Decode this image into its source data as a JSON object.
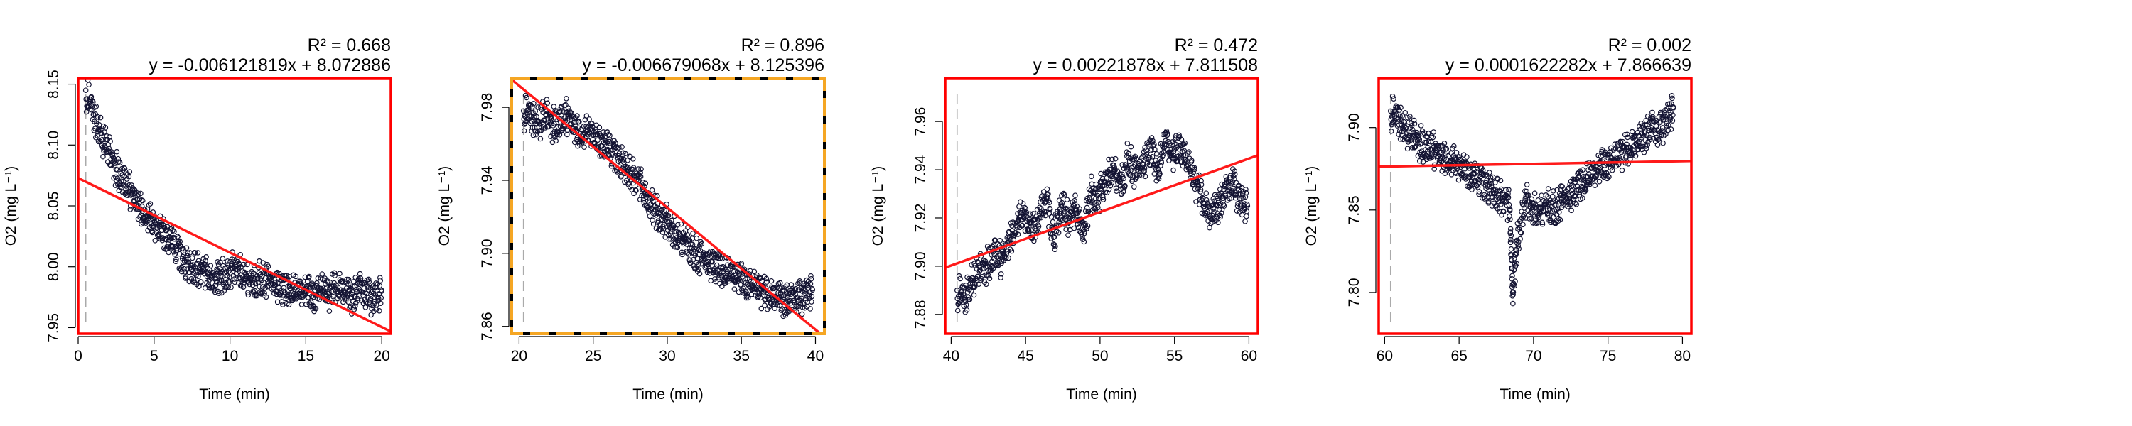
{
  "chart_data": [
    {
      "type": "scatter",
      "xlabel": "Time (min)",
      "ylabel": "O2 (mg L⁻¹)",
      "r2_label": "R² = 0.668",
      "equation_label": "y = -0.006121819x + 8.072886",
      "fit": {
        "slope": -0.006121819,
        "intercept": 8.072886
      },
      "border_color": "#ff0000",
      "border_style": "solid",
      "xlim": [
        0,
        20.6
      ],
      "ylim": [
        7.945,
        8.155
      ],
      "xticks": [
        "0",
        "5",
        "10",
        "15",
        "20"
      ],
      "yticks": [
        "7.95",
        "8.00",
        "8.05",
        "8.10",
        "8.15"
      ],
      "xtick_values": [
        0,
        5,
        10,
        15,
        20
      ],
      "ytick_values": [
        7.95,
        8.0,
        8.05,
        8.1,
        8.15
      ],
      "vline_x": 0.5,
      "points": {
        "x": [
          0.5,
          1.0,
          1.5,
          2.0,
          2.5,
          3.0,
          3.5,
          4.0,
          4.5,
          5.0,
          5.5,
          6.0,
          6.5,
          7.0,
          7.5,
          8.0,
          8.5,
          9.0,
          9.5,
          10.0,
          10.5,
          11.0,
          11.5,
          12.0,
          12.5,
          13.0,
          13.5,
          14.0,
          14.5,
          15.0,
          15.5,
          16.0,
          16.5,
          17.0,
          17.5,
          18.0,
          18.5,
          19.0,
          19.5,
          20.0
        ],
        "y": [
          8.145,
          8.125,
          8.11,
          8.095,
          8.08,
          8.07,
          8.06,
          8.05,
          8.042,
          8.035,
          8.03,
          8.022,
          8.015,
          8.005,
          7.998,
          7.995,
          7.992,
          7.99,
          7.992,
          7.995,
          7.998,
          7.99,
          7.985,
          7.99,
          7.988,
          7.985,
          7.98,
          7.982,
          7.978,
          7.98,
          7.975,
          7.982,
          7.978,
          7.985,
          7.98,
          7.975,
          7.982,
          7.978,
          7.975,
          7.98
        ]
      }
    },
    {
      "type": "scatter",
      "xlabel": "Time (min)",
      "ylabel": "O2 (mg L⁻¹)",
      "r2_label": "R² = 0.896",
      "equation_label": "y = -0.006679068x + 8.125396",
      "fit": {
        "slope": -0.006679068,
        "intercept": 8.125396
      },
      "border_color": "#f5a623",
      "border_style": "dashed",
      "xlim": [
        19.5,
        40.6
      ],
      "ylim": [
        7.856,
        7.996
      ],
      "xticks": [
        "20",
        "25",
        "30",
        "35",
        "40"
      ],
      "yticks": [
        "7.86",
        "7.90",
        "7.94",
        "7.98"
      ],
      "xtick_values": [
        20,
        25,
        30,
        35,
        40
      ],
      "ytick_values": [
        7.86,
        7.9,
        7.94,
        7.98
      ],
      "vline_x": 20.3,
      "points": {
        "x": [
          20.3,
          20.8,
          21.3,
          21.8,
          22.3,
          22.8,
          23.3,
          23.8,
          24.3,
          24.8,
          25.3,
          25.8,
          26.3,
          26.8,
          27.3,
          27.8,
          28.3,
          28.8,
          29.3,
          29.8,
          30.3,
          30.8,
          31.3,
          31.8,
          32.3,
          32.8,
          33.3,
          33.8,
          34.3,
          34.8,
          35.3,
          35.8,
          36.3,
          36.8,
          37.3,
          37.8,
          38.3,
          38.8,
          39.3,
          39.8
        ],
        "y": [
          7.978,
          7.975,
          7.972,
          7.976,
          7.97,
          7.972,
          7.975,
          7.968,
          7.965,
          7.968,
          7.962,
          7.96,
          7.955,
          7.952,
          7.945,
          7.94,
          7.935,
          7.928,
          7.922,
          7.918,
          7.912,
          7.908,
          7.905,
          7.9,
          7.897,
          7.894,
          7.892,
          7.89,
          7.888,
          7.886,
          7.884,
          7.882,
          7.88,
          7.878,
          7.876,
          7.875,
          7.874,
          7.876,
          7.878,
          7.88
        ]
      }
    },
    {
      "type": "scatter",
      "xlabel": "Time (min)",
      "ylabel": "O2 (mg L⁻¹)",
      "r2_label": "R² = 0.472",
      "equation_label": "y = 0.00221878x + 7.811508",
      "fit": {
        "slope": 0.00221878,
        "intercept": 7.811508
      },
      "border_color": "#ff0000",
      "border_style": "solid",
      "xlim": [
        39.6,
        60.6
      ],
      "ylim": [
        7.872,
        7.978
      ],
      "xticks": [
        "40",
        "45",
        "50",
        "55",
        "60"
      ],
      "yticks": [
        "7.88",
        "7.90",
        "7.92",
        "7.94",
        "7.96"
      ],
      "xtick_values": [
        40,
        45,
        50,
        55,
        60
      ],
      "ytick_values": [
        7.88,
        7.9,
        7.92,
        7.94,
        7.96
      ],
      "vline_x": 40.4,
      "points": {
        "x": [
          40.4,
          40.9,
          41.4,
          41.9,
          42.4,
          42.9,
          43.4,
          43.9,
          44.4,
          44.9,
          45.4,
          45.9,
          46.4,
          46.9,
          47.4,
          47.9,
          48.4,
          48.9,
          49.4,
          49.9,
          50.4,
          50.9,
          51.4,
          51.9,
          52.4,
          52.9,
          53.4,
          53.9,
          54.4,
          54.9,
          55.4,
          55.9,
          56.4,
          56.9,
          57.4,
          57.9,
          58.4,
          58.9,
          59.4,
          59.9
        ],
        "y": [
          7.89,
          7.886,
          7.895,
          7.898,
          7.9,
          7.905,
          7.902,
          7.91,
          7.918,
          7.922,
          7.915,
          7.92,
          7.928,
          7.912,
          7.925,
          7.918,
          7.922,
          7.915,
          7.93,
          7.928,
          7.935,
          7.94,
          7.932,
          7.945,
          7.938,
          7.942,
          7.948,
          7.94,
          7.952,
          7.945,
          7.95,
          7.942,
          7.935,
          7.928,
          7.92,
          7.925,
          7.93,
          7.935,
          7.928,
          7.925
        ]
      }
    },
    {
      "type": "scatter",
      "xlabel": "Time (min)",
      "ylabel": "O2 (mg L⁻¹)",
      "r2_label": "R² = 0.002",
      "equation_label": "y = 0.0001622282x + 7.866639",
      "fit": {
        "slope": 0.0001622282,
        "intercept": 7.866639
      },
      "border_color": "#ff0000",
      "border_style": "solid",
      "xlim": [
        59.6,
        80.6
      ],
      "ylim": [
        7.775,
        7.93
      ],
      "xticks": [
        "60",
        "65",
        "70",
        "75",
        "80"
      ],
      "yticks": [
        "7.80",
        "7.85",
        "7.90"
      ],
      "xtick_values": [
        60,
        65,
        70,
        75,
        80
      ],
      "ytick_values": [
        7.8,
        7.85,
        7.9
      ],
      "vline_x": 60.4,
      "points": {
        "x": [
          60.4,
          60.9,
          61.4,
          61.9,
          62.4,
          62.9,
          63.4,
          63.9,
          64.4,
          64.9,
          65.4,
          65.9,
          66.4,
          66.9,
          67.4,
          67.9,
          68.4,
          68.6,
          68.9,
          69.4,
          69.9,
          70.4,
          70.9,
          71.4,
          71.9,
          72.4,
          72.9,
          73.4,
          73.9,
          74.4,
          74.9,
          75.4,
          75.9,
          76.4,
          76.9,
          77.4,
          77.9,
          78.4,
          78.9,
          79.4
        ],
        "y": [
          7.91,
          7.905,
          7.9,
          7.895,
          7.89,
          7.888,
          7.885,
          7.882,
          7.88,
          7.878,
          7.875,
          7.87,
          7.868,
          7.865,
          7.86,
          7.855,
          7.85,
          7.8,
          7.83,
          7.855,
          7.85,
          7.848,
          7.852,
          7.85,
          7.855,
          7.858,
          7.862,
          7.868,
          7.87,
          7.875,
          7.878,
          7.88,
          7.885,
          7.888,
          7.89,
          7.895,
          7.9,
          7.898,
          7.905,
          7.912
        ]
      }
    }
  ]
}
